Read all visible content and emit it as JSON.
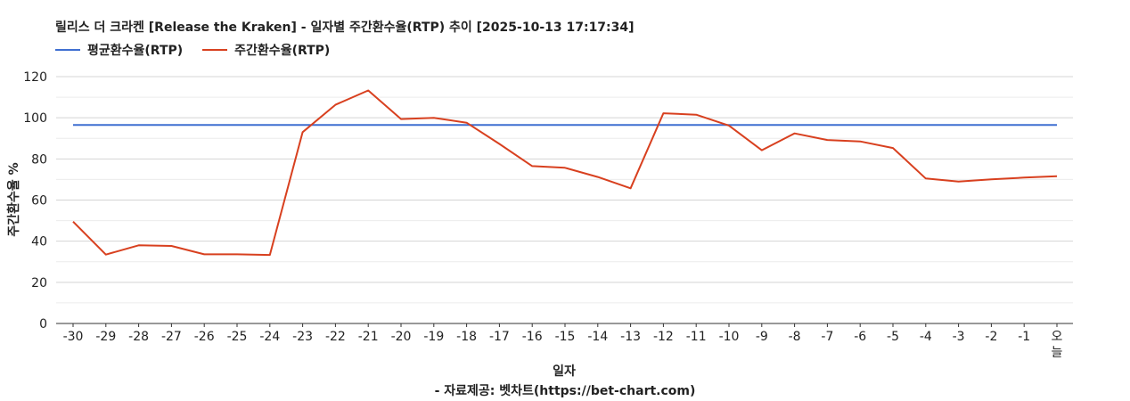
{
  "colors": {
    "avg": "#3f6fd1",
    "weekly": "#d8401f",
    "grid": "#d4d4d4",
    "axis": "#333333"
  },
  "chart_data": {
    "type": "line",
    "title": "릴리스 더 크라켄 [Release the Kraken] - 일자별 주간환수율(RTP) 추이 [2025-10-13 17:17:34]",
    "xlabel": "일자",
    "ylabel": "주간환수율 %",
    "ylim": [
      0,
      120
    ],
    "yticks": [
      "0",
      "20",
      "40",
      "60",
      "80",
      "100",
      "120"
    ],
    "categories": [
      "-30",
      "-29",
      "-28",
      "-27",
      "-26",
      "-25",
      "-24",
      "-23",
      "-22",
      "-21",
      "-20",
      "-19",
      "-18",
      "-17",
      "-16",
      "-15",
      "-14",
      "-13",
      "-12",
      "-11",
      "-10",
      "-9",
      "-8",
      "-7",
      "-6",
      "-5",
      "-4",
      "-3",
      "-2",
      "-1",
      "오늘"
    ],
    "grid": true,
    "legend_position": "top-left",
    "series": [
      {
        "name": "평균환수율(RTP)",
        "color": "#3f6fd1",
        "values": [
          96.5,
          96.5,
          96.5,
          96.5,
          96.5,
          96.5,
          96.5,
          96.5,
          96.5,
          96.5,
          96.5,
          96.5,
          96.5,
          96.5,
          96.5,
          96.5,
          96.5,
          96.5,
          96.5,
          96.5,
          96.5,
          96.5,
          96.5,
          96.5,
          96.5,
          96.5,
          96.5,
          96.5,
          96.5,
          96.5,
          96.5
        ]
      },
      {
        "name": "주간환수율(RTP)",
        "color": "#d8401f",
        "values": [
          49.5,
          33.5,
          38.0,
          37.7,
          33.6,
          33.6,
          33.3,
          93.0,
          106.3,
          113.3,
          99.4,
          100.0,
          97.6,
          87.3,
          76.5,
          75.7,
          71.2,
          65.7,
          102.2,
          101.5,
          96.2,
          84.2,
          92.4,
          89.2,
          88.5,
          85.3,
          70.5,
          69.0,
          70.1,
          70.9,
          71.6
        ]
      }
    ]
  },
  "footer": "- 자료제공: 벳차트(https://bet-chart.com)"
}
